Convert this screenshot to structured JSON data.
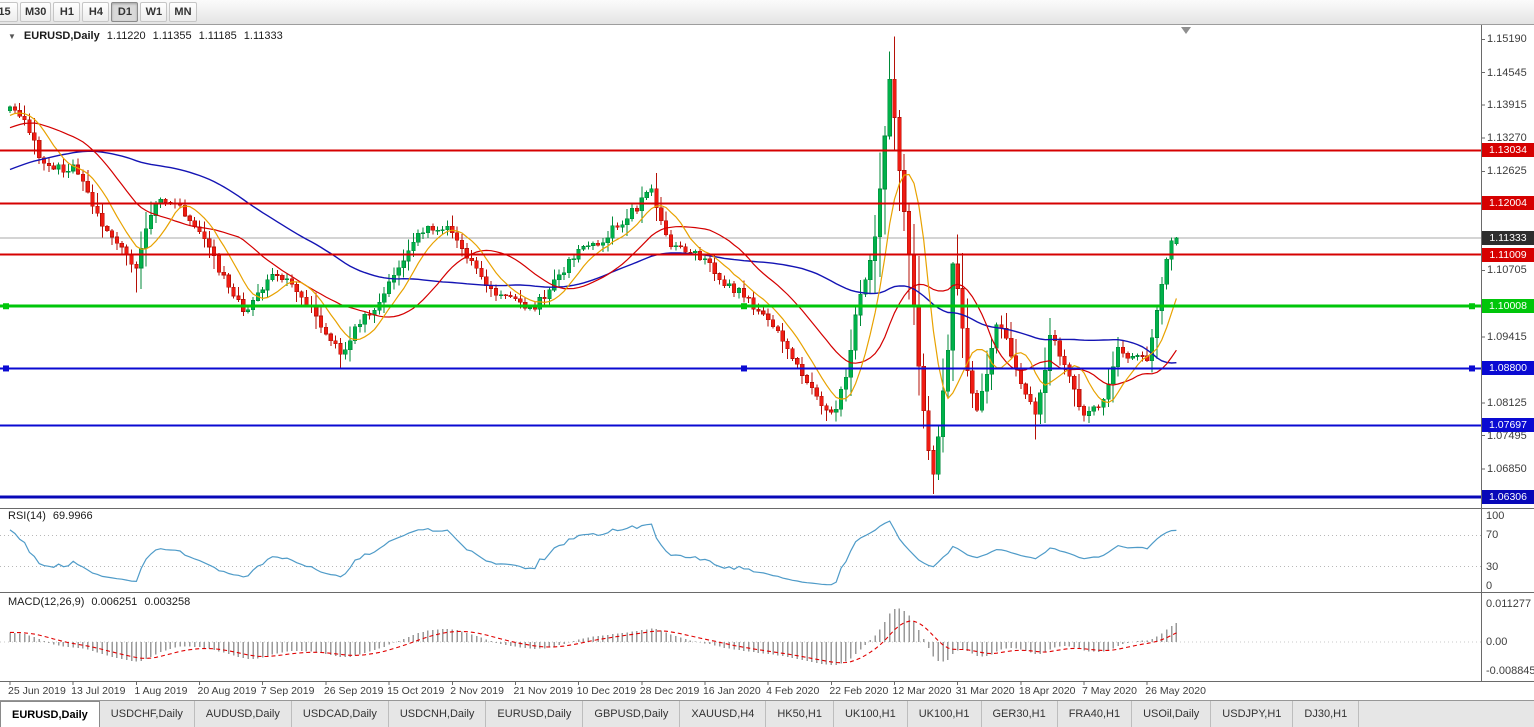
{
  "toolbar": {
    "timeframes": [
      "15",
      "M30",
      "H1",
      "H4",
      "D1",
      "W1",
      "MN"
    ],
    "active": "D1"
  },
  "chart": {
    "symbol": "EURUSD,Daily",
    "ohlc": {
      "open": "1.11220",
      "high": "1.11355",
      "low": "1.11185",
      "close": "1.11333"
    }
  },
  "price_axis": {
    "ticks": [
      {
        "t": "1.15190",
        "v": 1.1519
      },
      {
        "t": "1.14545",
        "v": 1.14545
      },
      {
        "t": "1.13915",
        "v": 1.13915
      },
      {
        "t": "1.13270",
        "v": 1.1327
      },
      {
        "t": "1.12625",
        "v": 1.12625
      },
      {
        "t": "1.10705",
        "v": 1.10705
      },
      {
        "t": "1.09415",
        "v": 1.09415
      },
      {
        "t": "1.08125",
        "v": 1.08125
      },
      {
        "t": "1.07495",
        "v": 1.07495
      },
      {
        "t": "1.06850",
        "v": 1.0685
      }
    ]
  },
  "levels": [
    {
      "label": "1.13034",
      "price": 1.13034,
      "color": "#d60000",
      "width": 2,
      "handles": false
    },
    {
      "label": "1.12004",
      "price": 1.12004,
      "color": "#d60000",
      "width": 2,
      "handles": false
    },
    {
      "label": "1.11009",
      "price": 1.11009,
      "color": "#d60000",
      "width": 2,
      "handles": false
    },
    {
      "label": "1.10008",
      "price": 1.10008,
      "color": "#00c60a",
      "width": 3,
      "handles": true
    },
    {
      "label": "1.08800",
      "price": 1.088,
      "color": "#0a0ad2",
      "width": 2,
      "handles": true
    },
    {
      "label": "1.07697",
      "price": 1.07697,
      "color": "#0a0ad2",
      "width": 2,
      "handles": false
    },
    {
      "label": "1.06306",
      "price": 1.06306,
      "color": "#0808b8",
      "width": 3,
      "handles": false
    }
  ],
  "current_price": {
    "label": "1.11333",
    "price": 1.11333,
    "badge_color": "#2e2e2e",
    "line_color": "#a8a8a8"
  },
  "rsi": {
    "title": "RSI(14)",
    "value": "69.9966",
    "line_color": "#4f9bc8",
    "guide_levels": [
      70,
      30
    ],
    "scale": [
      {
        "t": "100",
        "v": 100
      },
      {
        "t": "70",
        "v": 70
      },
      {
        "t": "30",
        "v": 30
      },
      {
        "t": "0",
        "v": 0
      }
    ]
  },
  "macd": {
    "title": "MACD(12,26,9)",
    "main_value": "0.006251",
    "signal_value": "0.003258",
    "bar_color": "#9a9a9a",
    "signal_color": "#e00000",
    "scale": [
      {
        "t": "0.011277",
        "v": 0.011277
      },
      {
        "t": "0.00",
        "v": 0
      },
      {
        "t": "-0.008845",
        "v": -0.008845
      }
    ]
  },
  "dates": [
    "25 Jun 2019",
    "13 Jul 2019",
    "1 Aug 2019",
    "20 Aug 2019",
    "7 Sep 2019",
    "26 Sep 2019",
    "15 Oct 2019",
    "2 Nov 2019",
    "21 Nov 2019",
    "10 Dec 2019",
    "28 Dec 2019",
    "16 Jan 2020",
    "4 Feb 2020",
    "22 Feb 2020",
    "12 Mar 2020",
    "31 Mar 2020",
    "18 Apr 2020",
    "7 May 2020",
    "26 May 2020"
  ],
  "tabs": [
    {
      "label": "EURUSD,Daily",
      "active": true
    },
    {
      "label": "USDCHF,Daily"
    },
    {
      "label": "AUDUSD,Daily"
    },
    {
      "label": "USDCAD,Daily"
    },
    {
      "label": "USDCNH,Daily"
    },
    {
      "label": "EURUSD,Daily"
    },
    {
      "label": "GBPUSD,Daily"
    },
    {
      "label": "XAUUSD,H4"
    },
    {
      "label": "HK50,H1"
    },
    {
      "label": "UK100,H1"
    },
    {
      "label": "UK100,H1"
    },
    {
      "label": "GER30,H1"
    },
    {
      "label": "FRA40,H1"
    },
    {
      "label": "USOil,Daily"
    },
    {
      "label": "USDJPY,H1"
    },
    {
      "label": "DJ30,H1"
    }
  ],
  "colors": {
    "candle_up": "#00b14a",
    "candle_up_edge": "#008a39",
    "candle_down": "#ef1c13",
    "candle_down_edge": "#b51007",
    "ma_fast": "#e8a200",
    "ma_medium": "#d40000",
    "ma_slow": "#1414b4"
  },
  "chart_data": {
    "type": "candlestick",
    "symbol": "EURUSD",
    "period": "Daily",
    "price_range_visible": [
      1.0611,
      1.1543
    ],
    "last_candle": {
      "open": 1.1122,
      "high": 1.11355,
      "low": 1.11185,
      "close": 1.11333
    },
    "horizontal_levels": [
      1.13034,
      1.12004,
      1.11009,
      1.10008,
      1.088,
      1.07697,
      1.06306
    ],
    "indicators": {
      "rsi_period": 14,
      "rsi_last": 69.9966,
      "macd_params": [
        12,
        26,
        9
      ],
      "macd_last": 0.006251,
      "macd_signal_last": 0.003258,
      "macd_axis_max": 0.011277,
      "macd_axis_min": -0.008845
    },
    "price_path_anchors": [
      [
        0,
        1.139
      ],
      [
        3,
        1.1368
      ],
      [
        6,
        1.129
      ],
      [
        10,
        1.1268
      ],
      [
        13,
        1.1272
      ],
      [
        16,
        1.1218
      ],
      [
        20,
        1.1145
      ],
      [
        23,
        1.1112
      ],
      [
        26,
        1.1078
      ],
      [
        28,
        1.1155
      ],
      [
        30,
        1.1205
      ],
      [
        34,
        1.1198
      ],
      [
        37,
        1.1172
      ],
      [
        39,
        1.1152
      ],
      [
        42,
        1.1095
      ],
      [
        45,
        1.1035
      ],
      [
        48,
        1.0992
      ],
      [
        52,
        1.1032
      ],
      [
        55,
        1.1068
      ],
      [
        58,
        1.1042
      ],
      [
        61,
        1.1012
      ],
      [
        64,
        1.0962
      ],
      [
        68,
        1.0908
      ],
      [
        71,
        1.0958
      ],
      [
        74,
        1.0988
      ],
      [
        78,
        1.1042
      ],
      [
        82,
        1.1112
      ],
      [
        86,
        1.1158
      ],
      [
        91,
        1.1148
      ],
      [
        94,
        1.1092
      ],
      [
        97,
        1.1062
      ],
      [
        100,
        1.1018
      ],
      [
        104,
        1.1012
      ],
      [
        107,
        1.0992
      ],
      [
        110,
        1.1022
      ],
      [
        113,
        1.1062
      ],
      [
        117,
        1.1108
      ],
      [
        121,
        1.1122
      ],
      [
        125,
        1.1158
      ],
      [
        129,
        1.1192
      ],
      [
        132,
        1.1228
      ],
      [
        134,
        1.1172
      ],
      [
        136,
        1.1122
      ],
      [
        139,
        1.1112
      ],
      [
        143,
        1.1092
      ],
      [
        146,
        1.1052
      ],
      [
        150,
        1.1028
      ],
      [
        153,
        1.1002
      ],
      [
        156,
        1.0978
      ],
      [
        159,
        1.0938
      ],
      [
        162,
        1.0882
      ],
      [
        165,
        1.0842
      ],
      [
        168,
        1.0798
      ],
      [
        170,
        1.0808
      ],
      [
        172,
        1.0858
      ],
      [
        174,
        1.0988
      ],
      [
        176,
        1.1058
      ],
      [
        178,
        1.1138
      ],
      [
        180,
        1.1332
      ],
      [
        181,
        1.1448
      ],
      [
        182,
        1.1368
      ],
      [
        183,
        1.1272
      ],
      [
        184,
        1.1182
      ],
      [
        185,
        1.1108
      ],
      [
        186,
        1.0992
      ],
      [
        187,
        1.0882
      ],
      [
        188,
        1.0802
      ],
      [
        189,
        1.0722
      ],
      [
        190,
        1.0682
      ],
      [
        191,
        1.0752
      ],
      [
        192,
        1.0832
      ],
      [
        193,
        1.0922
      ],
      [
        194,
        1.1082
      ],
      [
        195,
        1.1042
      ],
      [
        196,
        1.0962
      ],
      [
        197,
        1.0882
      ],
      [
        199,
        1.0798
      ],
      [
        201,
        1.0862
      ],
      [
        203,
        1.0972
      ],
      [
        205,
        1.0938
      ],
      [
        207,
        1.0882
      ],
      [
        209,
        1.0828
      ],
      [
        211,
        1.0792
      ],
      [
        213,
        1.0882
      ],
      [
        214,
        1.0952
      ],
      [
        216,
        1.0908
      ],
      [
        218,
        1.0868
      ],
      [
        221,
        1.0788
      ],
      [
        223,
        1.0802
      ],
      [
        225,
        1.0818
      ],
      [
        227,
        1.0888
      ],
      [
        228,
        1.0922
      ],
      [
        230,
        1.0902
      ],
      [
        232,
        1.0898
      ],
      [
        234,
        1.0902
      ],
      [
        236,
        1.0992
      ],
      [
        238,
        1.1092
      ],
      [
        239,
        1.1128
      ],
      [
        240,
        1.11333
      ]
    ],
    "wick_extremes": [
      [
        26,
        "low",
        1.1027
      ],
      [
        68,
        "low",
        1.0879
      ],
      [
        168,
        "low",
        1.0778
      ],
      [
        181,
        "high",
        1.1495
      ],
      [
        190,
        "low",
        1.0636
      ],
      [
        211,
        "low",
        1.0742
      ]
    ]
  }
}
